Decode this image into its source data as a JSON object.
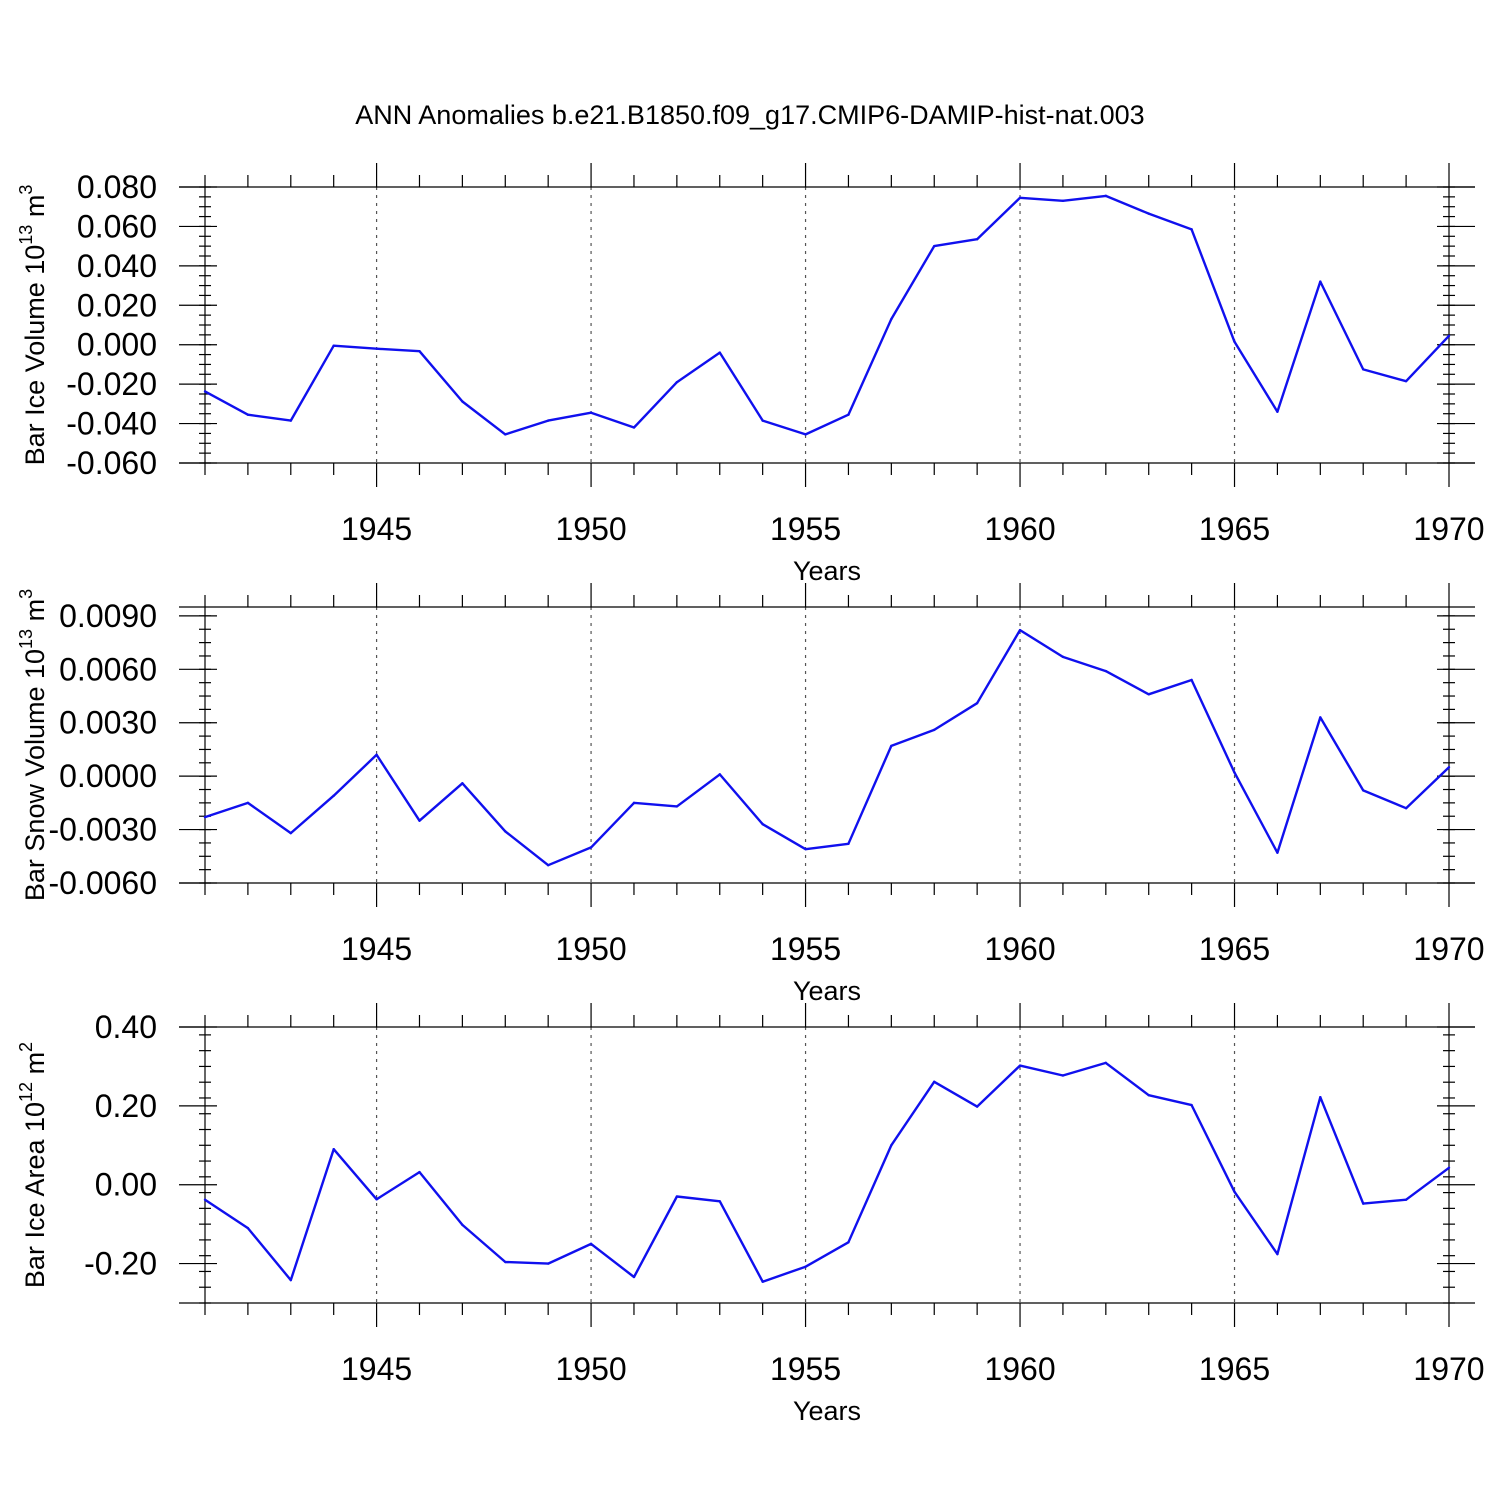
{
  "title": "ANN Anomalies b.e21.B1850.f09_g17.CMIP6-DAMIP-hist-nat.003",
  "colors": {
    "line": "#1010ee",
    "axis": "#000000",
    "grid": "#555555"
  },
  "chart_data": [
    {
      "type": "line",
      "ylabel_main": "Bar Ice Volume 10",
      "ylabel_exp": "13",
      "ylabel_unit": " m",
      "ylabel_unit_exp": "3",
      "xlabel": "Years",
      "xlim": [
        1941,
        1970
      ],
      "ylim": [
        -0.06,
        0.08
      ],
      "yticks": [
        -0.06,
        -0.04,
        -0.02,
        0.0,
        0.02,
        0.04,
        0.06,
        0.08
      ],
      "ytick_labels": [
        "-0.060",
        "-0.040",
        "-0.020",
        "0.000",
        "0.020",
        "0.040",
        "0.060",
        "0.080"
      ],
      "yminor_step": 0.005,
      "xticks": [
        1945,
        1950,
        1955,
        1960,
        1965,
        1970
      ],
      "xtick_labels": [
        "1945",
        "1950",
        "1955",
        "1960",
        "1965",
        "1970"
      ],
      "x": [
        1941,
        1942,
        1943,
        1944,
        1945,
        1946,
        1947,
        1948,
        1949,
        1950,
        1951,
        1952,
        1953,
        1954,
        1955,
        1956,
        1957,
        1958,
        1959,
        1960,
        1961,
        1962,
        1963,
        1964,
        1965,
        1966,
        1967,
        1968,
        1969,
        1970
      ],
      "values": [
        -0.0237,
        -0.0355,
        -0.0385,
        -0.0005,
        -0.002,
        -0.0033,
        -0.0288,
        -0.0455,
        -0.0385,
        -0.0345,
        -0.042,
        -0.019,
        -0.004,
        -0.0385,
        -0.0455,
        -0.0355,
        0.013,
        0.05,
        0.0535,
        0.0745,
        0.073,
        0.0755,
        0.0665,
        0.0585,
        0.0015,
        -0.034,
        0.032,
        -0.0125,
        -0.0185,
        0.0045
      ]
    },
    {
      "type": "line",
      "ylabel_main": "Bar Snow Volume 10",
      "ylabel_exp": "13",
      "ylabel_unit": " m",
      "ylabel_unit_exp": "3",
      "xlabel": "Years",
      "xlim": [
        1941,
        1970
      ],
      "ylim": [
        -0.006,
        0.0095
      ],
      "yticks": [
        -0.006,
        -0.003,
        0.0,
        0.003,
        0.006,
        0.009
      ],
      "ytick_labels": [
        "-0.0060",
        "-0.0030",
        "0.0000",
        "0.0030",
        "0.0060",
        "0.0090"
      ],
      "yminor_step": 0.00075,
      "xticks": [
        1945,
        1950,
        1955,
        1960,
        1965,
        1970
      ],
      "xtick_labels": [
        "1945",
        "1950",
        "1955",
        "1960",
        "1965",
        "1970"
      ],
      "x": [
        1941,
        1942,
        1943,
        1944,
        1945,
        1946,
        1947,
        1948,
        1949,
        1950,
        1951,
        1952,
        1953,
        1954,
        1955,
        1956,
        1957,
        1958,
        1959,
        1960,
        1961,
        1962,
        1963,
        1964,
        1965,
        1966,
        1967,
        1968,
        1969,
        1970
      ],
      "values": [
        -0.0023,
        -0.0015,
        -0.0032,
        -0.0011,
        0.0012,
        -0.0025,
        -0.0004,
        -0.0031,
        -0.005,
        -0.004,
        -0.0015,
        -0.0017,
        0.0001,
        -0.0027,
        -0.0041,
        -0.0038,
        0.0017,
        0.0026,
        0.0041,
        0.0082,
        0.0067,
        0.0059,
        0.0046,
        0.0054,
        0.0002,
        -0.0043,
        0.0033,
        -0.0008,
        -0.0018,
        0.0005
      ]
    },
    {
      "type": "line",
      "ylabel_main": "Bar Ice Area 10",
      "ylabel_exp": "12",
      "ylabel_unit": " m",
      "ylabel_unit_exp": "2",
      "xlabel": "Years",
      "xlim": [
        1941,
        1970
      ],
      "ylim": [
        -0.3,
        0.4
      ],
      "yticks": [
        -0.2,
        0.0,
        0.2,
        0.4
      ],
      "ytick_labels": [
        "-0.20",
        "0.00",
        "0.20",
        "0.40"
      ],
      "yminor_step": 0.04,
      "xticks": [
        1945,
        1950,
        1955,
        1960,
        1965,
        1970
      ],
      "xtick_labels": [
        "1945",
        "1950",
        "1955",
        "1960",
        "1965",
        "1970"
      ],
      "x": [
        1941,
        1942,
        1943,
        1944,
        1945,
        1946,
        1947,
        1948,
        1949,
        1950,
        1951,
        1952,
        1953,
        1954,
        1955,
        1956,
        1957,
        1958,
        1959,
        1960,
        1961,
        1962,
        1963,
        1964,
        1965,
        1966,
        1967,
        1968,
        1969,
        1970
      ],
      "values": [
        -0.038,
        -0.11,
        -0.242,
        0.09,
        -0.037,
        0.032,
        -0.102,
        -0.196,
        -0.2,
        -0.15,
        -0.234,
        -0.03,
        -0.042,
        -0.246,
        -0.208,
        -0.146,
        0.1,
        0.261,
        0.198,
        0.302,
        0.277,
        0.309,
        0.227,
        0.202,
        -0.018,
        -0.176,
        0.222,
        -0.048,
        -0.038,
        0.043
      ]
    }
  ]
}
